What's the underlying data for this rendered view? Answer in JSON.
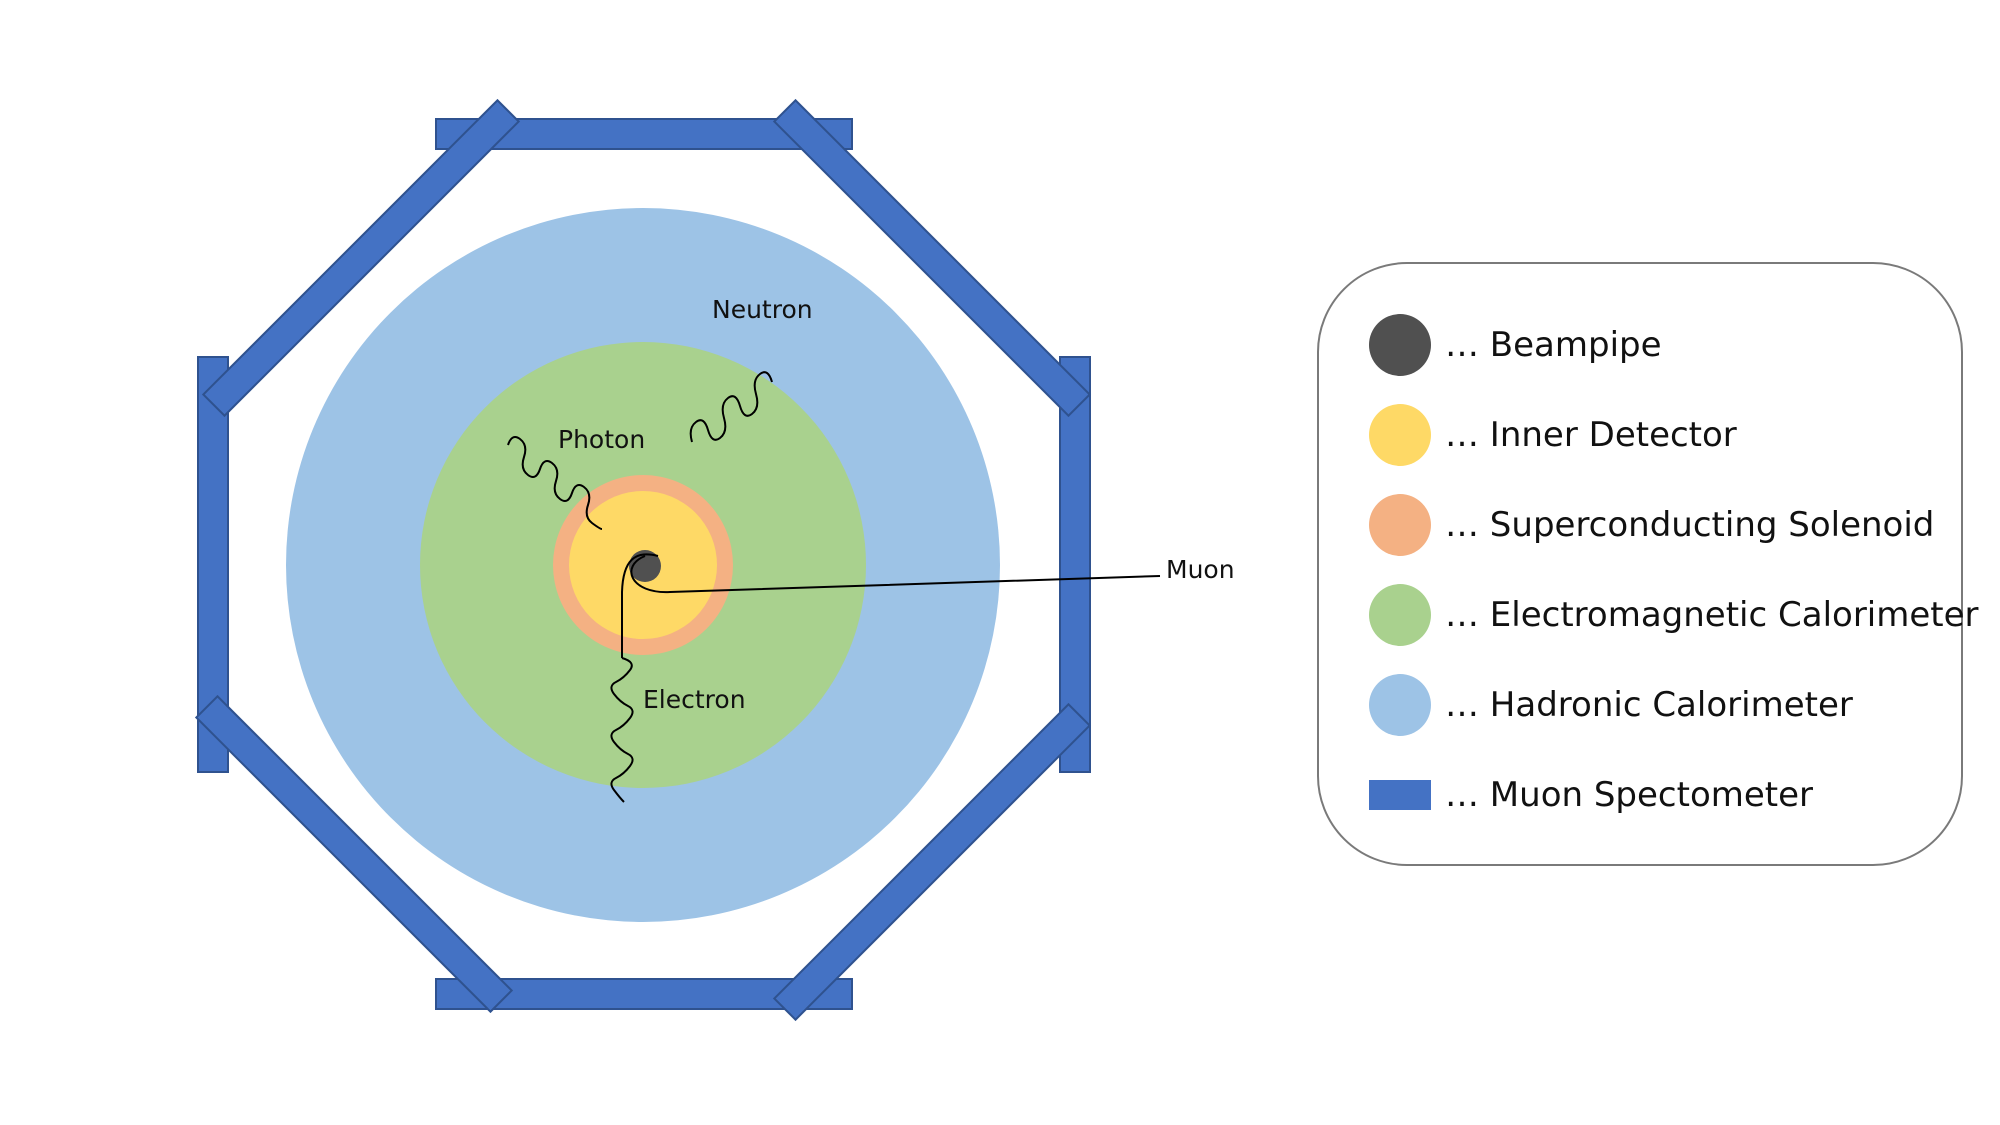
{
  "particles": {
    "neutron": "Neutron",
    "photon": "Photon",
    "muon": "Muon",
    "electron": "Electron"
  },
  "legend": {
    "items": [
      {
        "label": "… Beampipe",
        "color": "#505050",
        "shape": "circle"
      },
      {
        "label": "… Inner Detector",
        "color": "#fed966",
        "shape": "circle"
      },
      {
        "label": "… Superconducting Solenoid",
        "color": "#f4b183",
        "shape": "circle"
      },
      {
        "label": "… Electromagnetic Calorimeter",
        "color": "#a9d18e",
        "shape": "circle"
      },
      {
        "label": "… Hadronic Calorimeter",
        "color": "#9dc3e6",
        "shape": "circle"
      },
      {
        "label": "… Muon Spectometer",
        "color": "#4472c4",
        "shape": "rect"
      }
    ]
  }
}
